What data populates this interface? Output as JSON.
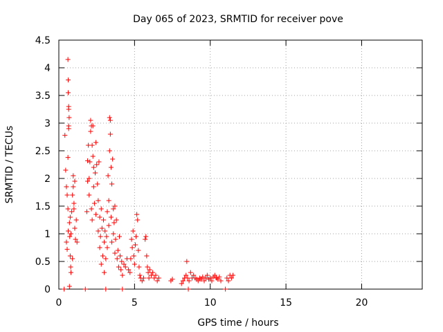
{
  "chart_data": {
    "type": "scatter",
    "title": "Day 065 of 2023, SRMTID for receiver pove",
    "xlabel": "GPS time / hours",
    "ylabel": "SRMTID / TECUs",
    "xlim": [
      0,
      24
    ],
    "ylim": [
      0,
      4.5
    ],
    "xticks": [
      0,
      5,
      10,
      15,
      20
    ],
    "xtick_labels": [
      "0",
      "5",
      "10",
      "15",
      "20"
    ],
    "yticks": [
      0,
      0.5,
      1,
      1.5,
      2,
      2.5,
      3,
      3.5,
      4,
      4.5
    ],
    "ytick_labels": [
      "0",
      "0.5",
      "1",
      "1.5",
      "2",
      "2.5",
      "3",
      "3.5",
      "4",
      "4.5"
    ],
    "grid": true,
    "marker": "+",
    "color": "#ff0000",
    "series": [
      {
        "values": [
          [
            0.35,
            0.0
          ],
          [
            0.4,
            2.78
          ],
          [
            0.45,
            2.15
          ],
          [
            0.5,
            1.85
          ],
          [
            0.5,
            0.85
          ],
          [
            0.55,
            1.7
          ],
          [
            0.55,
            0.72
          ],
          [
            0.6,
            4.15
          ],
          [
            0.6,
            2.38
          ],
          [
            0.6,
            1.45
          ],
          [
            0.62,
            3.78
          ],
          [
            0.62,
            3.55
          ],
          [
            0.62,
            1.05
          ],
          [
            0.65,
            3.3
          ],
          [
            0.65,
            3.25
          ],
          [
            0.65,
            2.95
          ],
          [
            0.65,
            2.9
          ],
          [
            0.68,
            3.1
          ],
          [
            0.7,
            1.2
          ],
          [
            0.7,
            0.05
          ],
          [
            0.72,
            0.95
          ],
          [
            0.75,
            1.3
          ],
          [
            0.75,
            0.6
          ],
          [
            0.78,
            0.4
          ],
          [
            0.8,
            0.3
          ],
          [
            0.8,
            1.0
          ],
          [
            0.85,
            1.4
          ],
          [
            0.9,
            1.7
          ],
          [
            0.9,
            0.55
          ],
          [
            0.95,
            2.05
          ],
          [
            0.95,
            1.85
          ],
          [
            1.0,
            1.55
          ],
          [
            1.0,
            1.45
          ],
          [
            1.05,
            1.95
          ],
          [
            1.05,
            1.1
          ],
          [
            1.1,
            0.9
          ],
          [
            1.15,
            1.25
          ],
          [
            1.2,
            0.85
          ],
          [
            1.75,
            0.0
          ],
          [
            1.85,
            1.4
          ],
          [
            1.9,
            1.95
          ],
          [
            1.9,
            2.32
          ],
          [
            1.95,
            2.6
          ],
          [
            2.0,
            1.7
          ],
          [
            2.0,
            2.0
          ],
          [
            2.05,
            2.3
          ],
          [
            2.1,
            2.85
          ],
          [
            2.1,
            3.05
          ],
          [
            2.15,
            2.95
          ],
          [
            2.15,
            1.45
          ],
          [
            2.2,
            2.6
          ],
          [
            2.2,
            1.25
          ],
          [
            2.25,
            2.4
          ],
          [
            2.25,
            2.95
          ],
          [
            2.3,
            2.2
          ],
          [
            2.3,
            1.85
          ],
          [
            2.35,
            1.55
          ],
          [
            2.4,
            2.1
          ],
          [
            2.45,
            2.65
          ],
          [
            2.45,
            1.35
          ],
          [
            2.5,
            2.25
          ],
          [
            2.55,
            1.9
          ],
          [
            2.6,
            1.6
          ],
          [
            2.6,
            1.05
          ],
          [
            2.65,
            2.3
          ],
          [
            2.7,
            1.3
          ],
          [
            2.7,
            0.75
          ],
          [
            2.75,
            0.95
          ],
          [
            2.8,
            1.45
          ],
          [
            2.8,
            0.45
          ],
          [
            2.85,
            1.1
          ],
          [
            2.9,
            0.6
          ],
          [
            2.95,
            1.25
          ],
          [
            3.0,
            0.85
          ],
          [
            3.0,
            0.3
          ],
          [
            3.05,
            1.05
          ],
          [
            3.1,
            0.55
          ],
          [
            3.1,
            0.0
          ],
          [
            3.15,
            0.95
          ],
          [
            3.2,
            1.4
          ],
          [
            3.2,
            0.75
          ],
          [
            3.25,
            2.05
          ],
          [
            3.3,
            1.6
          ],
          [
            3.3,
            1.15
          ],
          [
            3.35,
            2.5
          ],
          [
            3.35,
            3.1
          ],
          [
            3.4,
            2.8
          ],
          [
            3.4,
            3.05
          ],
          [
            3.45,
            2.2
          ],
          [
            3.45,
            1.3
          ],
          [
            3.5,
            1.9
          ],
          [
            3.5,
            0.85
          ],
          [
            3.55,
            2.35
          ],
          [
            3.6,
            1.45
          ],
          [
            3.6,
            1.0
          ],
          [
            3.65,
            1.2
          ],
          [
            3.7,
            0.65
          ],
          [
            3.7,
            1.5
          ],
          [
            3.75,
            0.9
          ],
          [
            3.8,
            1.25
          ],
          [
            3.85,
            0.55
          ],
          [
            3.9,
            0.7
          ],
          [
            3.95,
            0.4
          ],
          [
            4.0,
            0.95
          ],
          [
            4.05,
            0.6
          ],
          [
            4.1,
            0.35
          ],
          [
            4.15,
            0.5
          ],
          [
            4.2,
            0.25
          ],
          [
            4.2,
            0.0
          ],
          [
            4.3,
            0.45
          ],
          [
            4.4,
            0.4
          ],
          [
            4.5,
            0.55
          ],
          [
            4.6,
            0.35
          ],
          [
            4.7,
            0.3
          ],
          [
            4.75,
            0.55
          ],
          [
            4.8,
            0.9
          ],
          [
            4.85,
            0.75
          ],
          [
            4.9,
            1.05
          ],
          [
            4.95,
            0.6
          ],
          [
            5.0,
            0.45
          ],
          [
            5.05,
            0.8
          ],
          [
            5.1,
            0.95
          ],
          [
            5.15,
            1.35
          ],
          [
            5.2,
            1.25
          ],
          [
            5.25,
            0.7
          ],
          [
            5.3,
            0.4
          ],
          [
            5.35,
            0.25
          ],
          [
            5.4,
            0.2
          ],
          [
            5.5,
            0.15
          ],
          [
            5.6,
            0.2
          ],
          [
            5.7,
            0.9
          ],
          [
            5.75,
            0.95
          ],
          [
            5.8,
            0.6
          ],
          [
            5.85,
            0.4
          ],
          [
            5.9,
            0.3
          ],
          [
            5.95,
            0.2
          ],
          [
            6.0,
            0.35
          ],
          [
            6.1,
            0.25
          ],
          [
            6.2,
            0.3
          ],
          [
            6.3,
            0.2
          ],
          [
            6.4,
            0.25
          ],
          [
            6.5,
            0.15
          ],
          [
            6.6,
            0.2
          ],
          [
            7.4,
            0.15
          ],
          [
            7.5,
            0.18
          ],
          [
            8.1,
            0.1
          ],
          [
            8.2,
            0.15
          ],
          [
            8.3,
            0.2
          ],
          [
            8.4,
            0.25
          ],
          [
            8.45,
            0.5
          ],
          [
            8.5,
            0.2
          ],
          [
            8.55,
            0.0
          ],
          [
            8.6,
            0.15
          ],
          [
            8.7,
            0.3
          ],
          [
            8.8,
            0.2
          ],
          [
            8.9,
            0.25
          ],
          [
            9.0,
            0.2
          ],
          [
            9.1,
            0.18
          ],
          [
            9.2,
            0.15
          ],
          [
            9.3,
            0.2
          ],
          [
            9.4,
            0.18
          ],
          [
            9.5,
            0.22
          ],
          [
            9.6,
            0.15
          ],
          [
            9.7,
            0.2
          ],
          [
            9.8,
            0.25
          ],
          [
            9.9,
            0.18
          ],
          [
            10.0,
            0.2
          ],
          [
            10.1,
            0.15
          ],
          [
            10.2,
            0.22
          ],
          [
            10.3,
            0.25
          ],
          [
            10.4,
            0.2
          ],
          [
            10.5,
            0.18
          ],
          [
            10.6,
            0.22
          ],
          [
            10.7,
            0.15
          ],
          [
            11.0,
            0.0
          ],
          [
            11.1,
            0.2
          ],
          [
            11.2,
            0.15
          ],
          [
            11.3,
            0.25
          ],
          [
            11.4,
            0.2
          ],
          [
            11.5,
            0.25
          ]
        ]
      }
    ]
  }
}
